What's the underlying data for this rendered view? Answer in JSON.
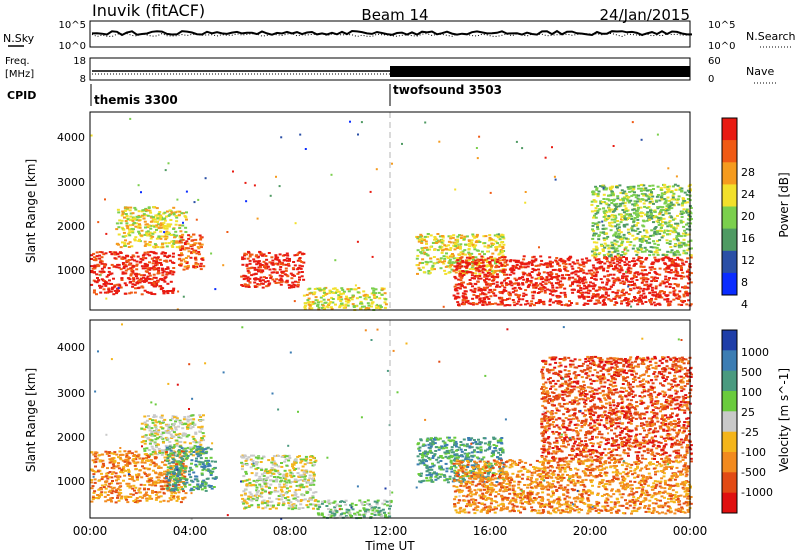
{
  "header": {
    "station": "Inuvik (fitACF)",
    "beam": "Beam 14",
    "date": "24/Jan/2015"
  },
  "status_panels": {
    "nsky_label": "N.Sky",
    "nsearch_label": "N.Search",
    "freq_label_top": "Freq.",
    "freq_label_bottom": "[MHz]",
    "nave_label": "Nave",
    "cpid_label": "CPID",
    "noise_left_ticks": [
      "10^5",
      "10^0"
    ],
    "noise_right_ticks": [
      "10^5",
      "10^0"
    ],
    "freq_left_ticks": [
      "18",
      "8"
    ],
    "freq_right_ticks": [
      "60",
      "0"
    ]
  },
  "cpid_segments": [
    {
      "name": "themis 3300",
      "start_hour": 0
    },
    {
      "name": "twofsound 3503",
      "start_hour": 12
    }
  ],
  "colors": {
    "power": [
      "#0a2cff",
      "#2a4fa6",
      "#4f9a63",
      "#7bcf4d",
      "#f2e02b",
      "#f59b1e",
      "#f05a14",
      "#e81b12"
    ],
    "velocity": [
      "#1f3ea8",
      "#3c7db3",
      "#4a9a7f",
      "#6acb3d",
      "#c9c9c9",
      "#f4b51b",
      "#f28a1e",
      "#e24a14",
      "#e01010"
    ]
  },
  "chart_data": [
    {
      "type": "heatmap",
      "name": "power",
      "ylabel": "Slant Range [km]",
      "yticks": [
        "1000",
        "2000",
        "3000",
        "4000"
      ],
      "ylim": [
        180,
        4600
      ],
      "xlim": [
        0,
        24
      ],
      "colorbar_label": "Power [dB]",
      "colorbar_ticks": [
        "4",
        "8",
        "12",
        "16",
        "20",
        "24",
        "28"
      ],
      "scatter_regions": [
        {
          "t0": 0.0,
          "t1": 3.3,
          "r0": 550,
          "r1": 1500,
          "level": 7
        },
        {
          "t0": 1.0,
          "t1": 3.8,
          "r0": 1600,
          "r1": 2500,
          "level": 4
        },
        {
          "t0": 3.5,
          "t1": 4.5,
          "r0": 1100,
          "r1": 1900,
          "level": 6
        },
        {
          "t0": 6.0,
          "t1": 8.5,
          "r0": 700,
          "r1": 1500,
          "level": 7
        },
        {
          "t0": 8.5,
          "t1": 11.8,
          "r0": 200,
          "r1": 700,
          "level": 4
        },
        {
          "t0": 13.0,
          "t1": 16.5,
          "r0": 1000,
          "r1": 1900,
          "level": 4
        },
        {
          "t0": 14.5,
          "t1": 24.0,
          "r0": 300,
          "r1": 1400,
          "level": 7
        },
        {
          "t0": 20.0,
          "t1": 24.0,
          "r0": 1400,
          "r1": 3000,
          "level": 3
        }
      ]
    },
    {
      "type": "heatmap",
      "name": "velocity",
      "ylabel": "Slant Range [km]",
      "yticks": [
        "1000",
        "2000",
        "3000",
        "4000"
      ],
      "ylim": [
        180,
        4600
      ],
      "xlim": [
        0,
        24
      ],
      "xticks": [
        "00:00",
        "04:00",
        "08:00",
        "12:00",
        "16:00",
        "20:00",
        "00:00"
      ],
      "xlabel": "Time UT",
      "colorbar_label": "Velocity [m s^-1]",
      "colorbar_ticks": [
        "1000",
        "500",
        "100",
        "25",
        "-25",
        "-100",
        "-500",
        "-1000"
      ],
      "scatter_regions": [
        {
          "t0": 0.0,
          "t1": 3.8,
          "r0": 550,
          "r1": 1700,
          "level": 6
        },
        {
          "t0": 2.0,
          "t1": 4.5,
          "r0": 1600,
          "r1": 2500,
          "level": 4
        },
        {
          "t0": 3.0,
          "t1": 5.0,
          "r0": 800,
          "r1": 1800,
          "level": 2
        },
        {
          "t0": 6.0,
          "t1": 9.0,
          "r0": 400,
          "r1": 1600,
          "level": 4
        },
        {
          "t0": 9.0,
          "t1": 12.0,
          "r0": 200,
          "r1": 600,
          "level": 3
        },
        {
          "t0": 13.0,
          "t1": 16.5,
          "r0": 1000,
          "r1": 2000,
          "level": 2
        },
        {
          "t0": 14.5,
          "t1": 24.0,
          "r0": 300,
          "r1": 1500,
          "level": 6
        },
        {
          "t0": 18.0,
          "t1": 24.0,
          "r0": 1500,
          "r1": 3800,
          "level": 7
        }
      ]
    }
  ]
}
